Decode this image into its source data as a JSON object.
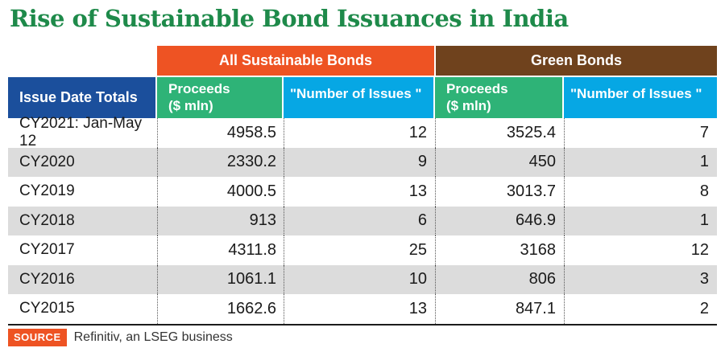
{
  "title": "Rise of Sustainable Bond Issuances in India",
  "table": {
    "group_headers": [
      {
        "label": "All Sustainable Bonds"
      },
      {
        "label": "Green Bonds"
      }
    ],
    "col_headers": {
      "issue_date": "Issue Date Totals",
      "asb_proceeds": "Proceeds\n($ mln)",
      "asb_issues": "\"Number of Issues \"",
      "gb_proceeds": "Proceeds\n($ mln)",
      "gb_issues": "\"Number of Issues \""
    },
    "rows": [
      {
        "label": "CY2021: Jan-May 12",
        "asb_proceeds": "4958.5",
        "asb_issues": "12",
        "gb_proceeds": "3525.4",
        "gb_issues": "7"
      },
      {
        "label": "CY2020",
        "asb_proceeds": "2330.2",
        "asb_issues": "9",
        "gb_proceeds": "450",
        "gb_issues": "1"
      },
      {
        "label": "CY2019",
        "asb_proceeds": "4000.5",
        "asb_issues": "13",
        "gb_proceeds": "3013.7",
        "gb_issues": "8"
      },
      {
        "label": "CY2018",
        "asb_proceeds": "913",
        "asb_issues": "6",
        "gb_proceeds": "646.9",
        "gb_issues": "1"
      },
      {
        "label": "CY2017",
        "asb_proceeds": "4311.8",
        "asb_issues": "25",
        "gb_proceeds": "3168",
        "gb_issues": "12"
      },
      {
        "label": "CY2016",
        "asb_proceeds": "1061.1",
        "asb_issues": "10",
        "gb_proceeds": "806",
        "gb_issues": "3"
      },
      {
        "label": "CY2015",
        "asb_proceeds": "1662.6",
        "asb_issues": "13",
        "gb_proceeds": "847.1",
        "gb_issues": "2"
      }
    ]
  },
  "source": {
    "label": "SOURCE",
    "text": "Refinitiv, an LSEG business"
  },
  "colors": {
    "title_green": "#1E8A4A",
    "orange": "#EE5323",
    "brown": "#6F421D",
    "dark_blue": "#1B4F9C",
    "green": "#2EB377",
    "light_blue": "#06A7E4",
    "stripe_gray": "#DCDCDC"
  },
  "chart_data": {
    "type": "table",
    "title": "Rise of Sustainable Bond Issuances in India",
    "column_groups": [
      "All Sustainable Bonds",
      "Green Bonds"
    ],
    "columns": [
      "Issue Date Totals",
      "All Sustainable Bonds - Proceeds ($ mln)",
      "All Sustainable Bonds - Number of Issues",
      "Green Bonds - Proceeds ($ mln)",
      "Green Bonds - Number of Issues"
    ],
    "rows": [
      [
        "CY2021: Jan-May 12",
        4958.5,
        12,
        3525.4,
        7
      ],
      [
        "CY2020",
        2330.2,
        9,
        450,
        1
      ],
      [
        "CY2019",
        4000.5,
        13,
        3013.7,
        8
      ],
      [
        "CY2018",
        913,
        6,
        646.9,
        1
      ],
      [
        "CY2017",
        4311.8,
        25,
        3168,
        12
      ],
      [
        "CY2016",
        1061.1,
        10,
        806,
        3
      ],
      [
        "CY2015",
        1662.6,
        13,
        847.1,
        2
      ]
    ],
    "source": "Refinitiv, an LSEG business"
  }
}
